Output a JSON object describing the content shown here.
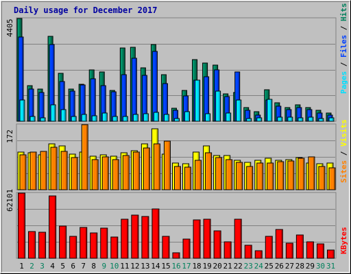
{
  "title": "Daily usage for December 2017",
  "colors": {
    "background": "#c0c0c0",
    "title": "#0000a0",
    "hits": "#00805c",
    "files": "#0040ff",
    "pages": "#00e0ff",
    "visits": "#ffff00",
    "sites": "#ff8000",
    "kbytes": "#ff0000",
    "weekday": "#000000",
    "weekend": "#00805c"
  },
  "chart_data": [
    {
      "type": "bar",
      "panel": "hits-files-pages",
      "legend_label": "Pages / Files / Hits",
      "legend_parts": [
        "Pages",
        "Files",
        "Hits"
      ],
      "ymax_label": "4405",
      "ylim": [
        0,
        4405
      ],
      "categories": [
        "1",
        "2",
        "3",
        "4",
        "5",
        "6",
        "7",
        "8",
        "9",
        "10",
        "11",
        "12",
        "13",
        "14",
        "15",
        "16",
        "17",
        "18",
        "19",
        "20",
        "21",
        "22",
        "23",
        "24",
        "25",
        "26",
        "27",
        "28",
        "29",
        "30",
        "31"
      ],
      "series": [
        {
          "name": "Hits",
          "values": [
            4405,
            1520,
            1390,
            3630,
            2050,
            1390,
            1600,
            2200,
            2110,
            1330,
            3150,
            3160,
            2280,
            3300,
            2010,
            560,
            1320,
            2650,
            2490,
            2410,
            1180,
            1240,
            580,
            400,
            1340,
            790,
            600,
            710,
            590,
            460,
            350
          ]
        },
        {
          "name": "Files",
          "values": [
            3600,
            1380,
            1230,
            3290,
            1700,
            1290,
            1550,
            1830,
            1540,
            1250,
            2000,
            2710,
            1970,
            3000,
            1620,
            460,
            1080,
            1770,
            1920,
            2200,
            1060,
            2110,
            460,
            250,
            920,
            650,
            490,
            600,
            500,
            340,
            250
          ]
        },
        {
          "name": "Pages",
          "values": [
            910,
            200,
            160,
            700,
            490,
            200,
            290,
            230,
            360,
            210,
            200,
            290,
            310,
            380,
            280,
            120,
            420,
            1760,
            320,
            1280,
            340,
            910,
            130,
            150,
            950,
            190,
            180,
            150,
            190,
            130,
            150
          ]
        }
      ]
    },
    {
      "type": "bar",
      "panel": "sites-visits",
      "legend_label": "Sites / Visits",
      "legend_parts": [
        "Sites",
        "Visits"
      ],
      "ymax_label": "172",
      "ylim": [
        0,
        172
      ],
      "categories": [
        "1",
        "2",
        "3",
        "4",
        "5",
        "6",
        "7",
        "8",
        "9",
        "10",
        "11",
        "12",
        "13",
        "14",
        "15",
        "16",
        "17",
        "18",
        "19",
        "20",
        "21",
        "22",
        "23",
        "24",
        "25",
        "26",
        "27",
        "28",
        "29",
        "30",
        "31"
      ],
      "series": [
        {
          "name": "Visits",
          "values": [
            100,
            97,
            93,
            122,
            115,
            95,
            100,
            88,
            93,
            88,
            97,
            103,
            122,
            162,
            95,
            70,
            68,
            100,
            116,
            91,
            91,
            78,
            72,
            78,
            83,
            78,
            80,
            85,
            71,
            68,
            70
          ]
        },
        {
          "name": "Sites",
          "values": [
            92,
            100,
            102,
            112,
            102,
            85,
            172,
            80,
            87,
            80,
            91,
            100,
            110,
            122,
            128,
            62,
            60,
            77,
            97,
            85,
            80,
            72,
            62,
            70,
            70,
            75,
            76,
            84,
            86,
            61,
            58
          ]
        }
      ]
    },
    {
      "type": "bar",
      "panel": "kbytes",
      "legend_label": "KBytes",
      "legend_parts": [
        "KBytes"
      ],
      "ymax_label": "62101",
      "ylim": [
        0,
        62101
      ],
      "categories": [
        "1",
        "2",
        "3",
        "4",
        "5",
        "6",
        "7",
        "8",
        "9",
        "10",
        "11",
        "12",
        "13",
        "14",
        "15",
        "16",
        "17",
        "18",
        "19",
        "20",
        "21",
        "22",
        "23",
        "24",
        "25",
        "26",
        "27",
        "28",
        "29",
        "30",
        "31"
      ],
      "series": [
        {
          "name": "KBytes",
          "values": [
            62101,
            25500,
            25000,
            59500,
            31000,
            21000,
            29500,
            24500,
            29000,
            20000,
            37000,
            41500,
            40000,
            47000,
            21000,
            5500,
            18000,
            36500,
            37500,
            26000,
            16000,
            37000,
            12500,
            7000,
            21000,
            27500,
            14500,
            22500,
            16000,
            14000,
            8000
          ]
        }
      ]
    }
  ],
  "day_labels": [
    "1",
    "2",
    "3",
    "4",
    "5",
    "6",
    "7",
    "8",
    "9",
    "10",
    "11",
    "12",
    "13",
    "14",
    "15",
    "16",
    "17",
    "18",
    "19",
    "20",
    "21",
    "22",
    "23",
    "24",
    "25",
    "26",
    "27",
    "28",
    "29",
    "30",
    "31"
  ],
  "weekend_days": [
    2,
    3,
    9,
    10,
    16,
    17,
    23,
    24,
    30,
    31
  ]
}
